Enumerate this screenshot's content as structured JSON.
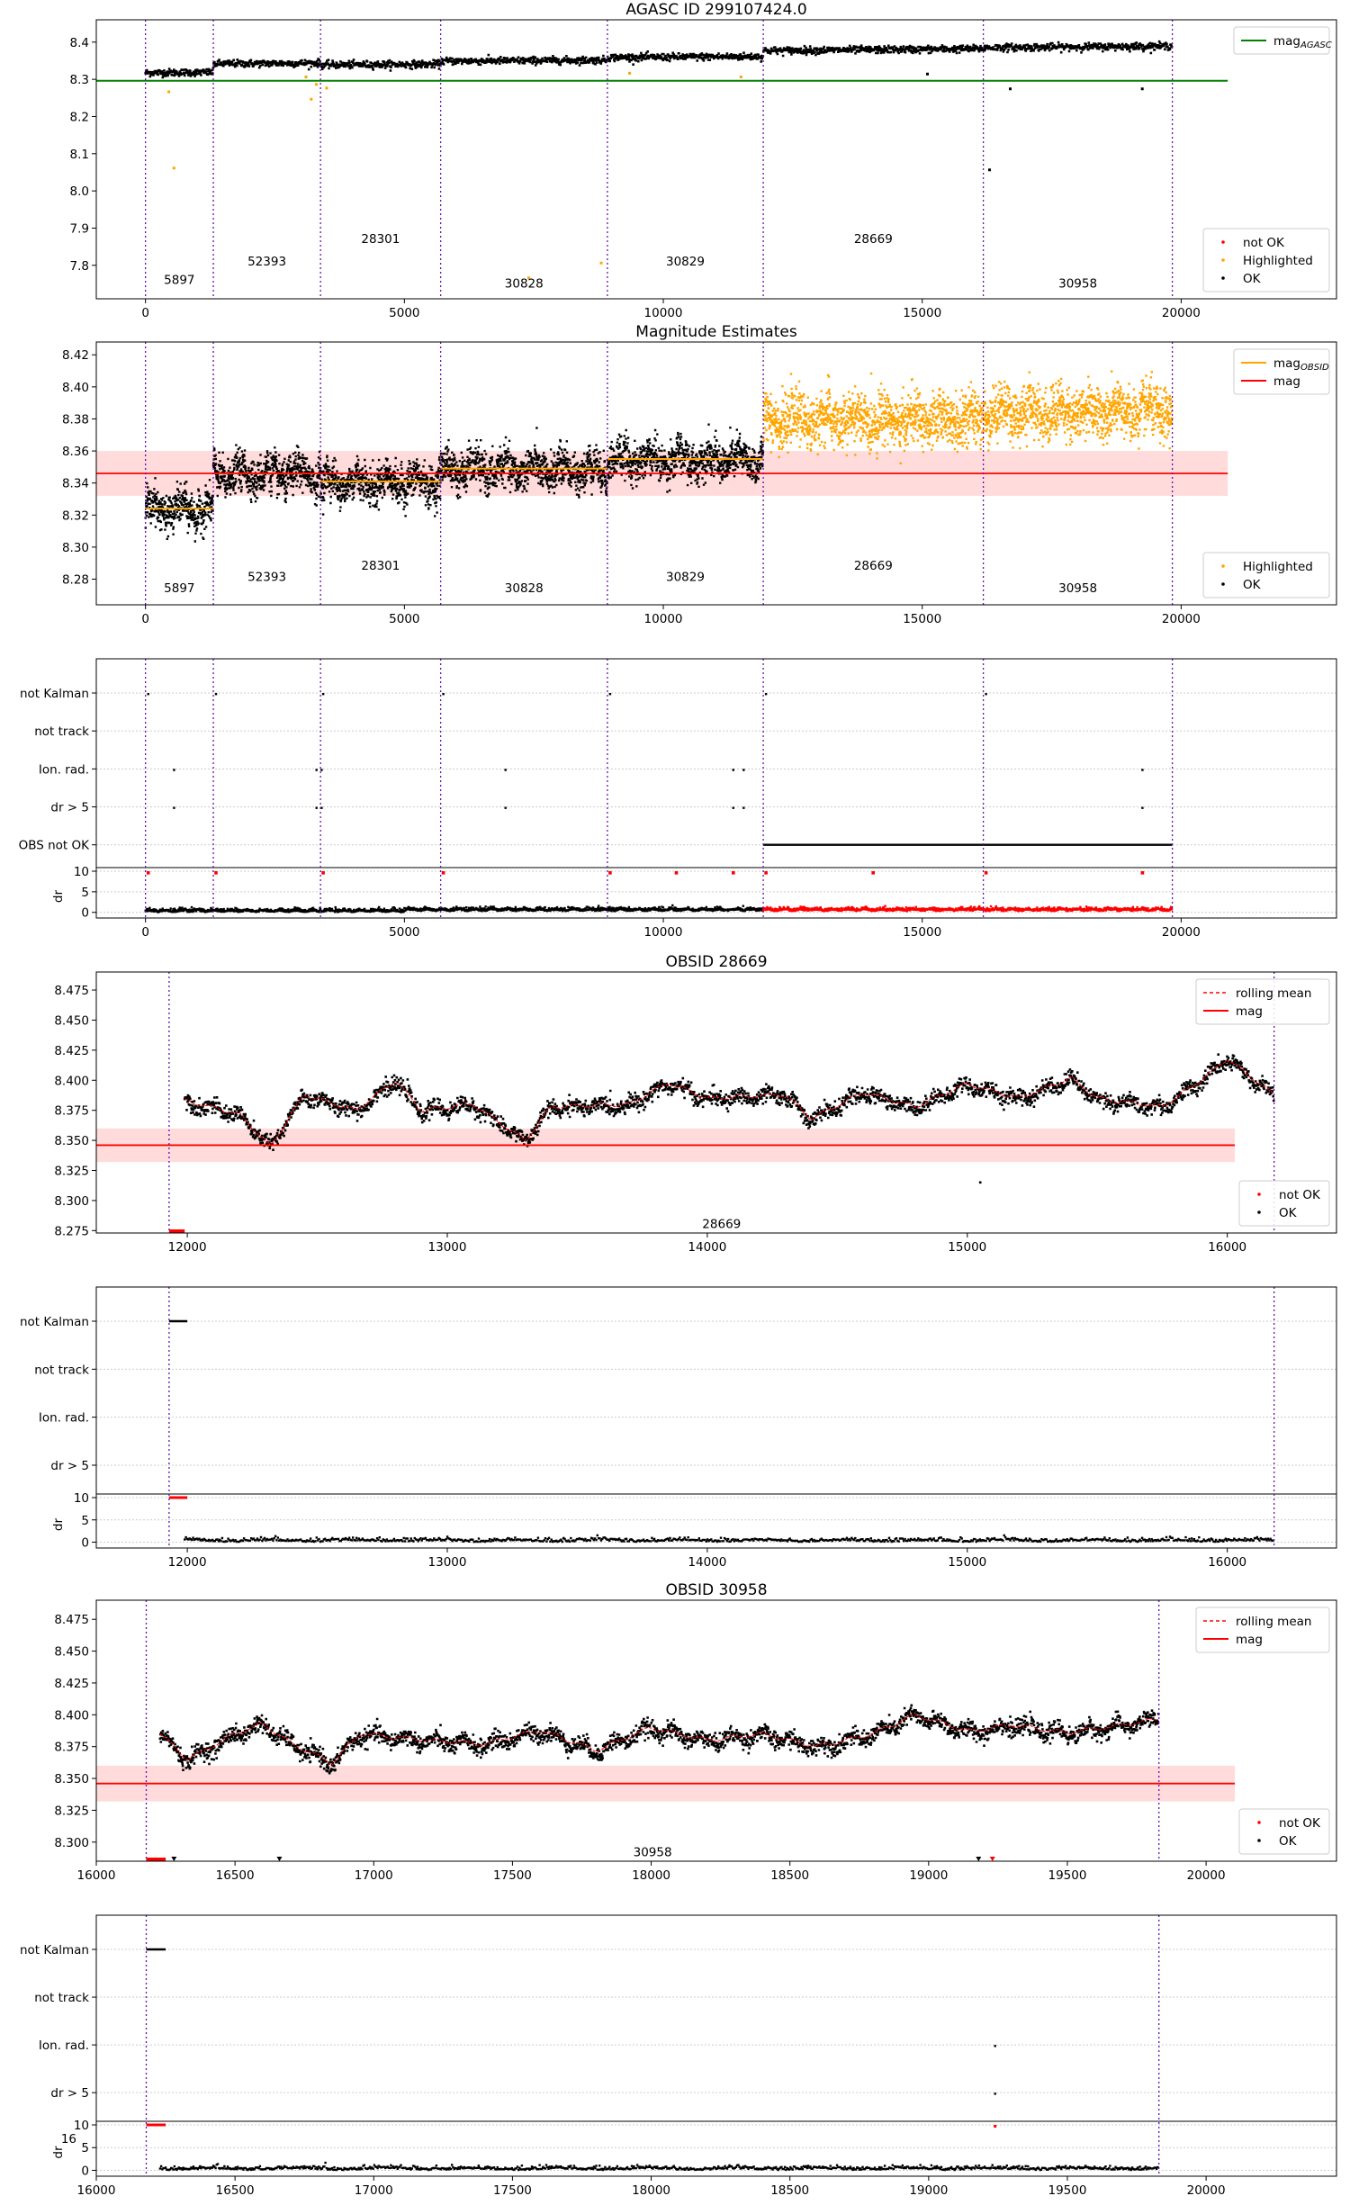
{
  "colors": {
    "ok": "#000000",
    "not_ok": "#ff0000",
    "highlighted": "#ffa500",
    "obs_line": "#6a0dad",
    "agasc_mag_line": "#008000",
    "mag_line": "#ff0000",
    "mag_band": "#ffcccc",
    "rolling_mean": "#ff0000",
    "grid": "#cccccc"
  },
  "observations": [
    {
      "obsid": "5897",
      "start": 0,
      "end": 1310,
      "mean": 8.324
    },
    {
      "obsid": "52393",
      "start": 1310,
      "end": 3380,
      "mean": 8.346
    },
    {
      "obsid": "28301",
      "start": 3380,
      "end": 5700,
      "mean": 8.341
    },
    {
      "obsid": "30828",
      "start": 5700,
      "end": 8920,
      "mean": 8.349
    },
    {
      "obsid": "30829",
      "start": 8920,
      "end": 11930,
      "mean": 8.355
    },
    {
      "obsid": "28669",
      "start": 11930,
      "end": 16180,
      "mean": 8.38
    },
    {
      "obsid": "30958",
      "start": 16180,
      "end": 19830,
      "mean": 8.385
    }
  ],
  "chart_data": [
    {
      "id": "agasc",
      "type": "scatter",
      "title": "AGASC ID 299107424.0",
      "xlim": [
        -950,
        23000
      ],
      "ylim": [
        7.71,
        8.46
      ],
      "xticks": [
        0,
        5000,
        10000,
        15000,
        20000
      ],
      "yticks": [
        7.8,
        7.9,
        8.0,
        8.1,
        8.2,
        8.3,
        8.4
      ],
      "ytick_labels": [
        "7.8",
        "7.9",
        "8.0",
        "8.1",
        "8.2",
        "8.3",
        "8.4"
      ],
      "hlines": [
        {
          "y": 8.296,
          "x0": -950,
          "x1": 20900,
          "color": "agasc_mag_line",
          "name": "mag_AGASC"
        }
      ],
      "legend_top": {
        "position": "top-right",
        "entries": [
          {
            "label": "mag",
            "sub": "AGASC",
            "color": "agasc_mag_line",
            "kind": "line"
          }
        ]
      },
      "legend_bottom": {
        "position": "bottom-right",
        "entries": [
          {
            "label": "not OK",
            "color": "not_ok",
            "kind": "dot"
          },
          {
            "label": "Highlighted",
            "color": "highlighted",
            "kind": "dot"
          },
          {
            "label": "OK",
            "color": "ok",
            "kind": "dot"
          }
        ]
      },
      "series": [
        {
          "name": "OK",
          "color": "ok",
          "x_start": 0,
          "x_end": 19830,
          "segments": [
            [
              0,
              8.322
            ],
            [
              1310,
              8.345
            ],
            [
              3380,
              8.34
            ],
            [
              5700,
              8.348
            ],
            [
              8920,
              8.355
            ],
            [
              11930,
              8.38
            ],
            [
              16180,
              8.383
            ],
            [
              19830,
              8.392
            ]
          ],
          "noise": 0.008,
          "count": 2200
        },
        {
          "name": "Highlighted",
          "color": "highlighted",
          "points": [
            [
              450,
              8.27
            ],
            [
              550,
              8.065
            ],
            [
              3100,
              8.31
            ],
            [
              3200,
              8.25
            ],
            [
              3300,
              8.29
            ],
            [
              3500,
              8.28
            ],
            [
              9350,
              8.32
            ],
            [
              11500,
              8.31
            ],
            [
              7400,
              7.77
            ],
            [
              8800,
              7.81
            ]
          ]
        },
        {
          "name": "OK outliers",
          "color": "ok",
          "points": [
            [
              15100,
              8.318
            ],
            [
              16300,
              8.06
            ],
            [
              16700,
              8.278
            ],
            [
              19250,
              8.278
            ]
          ]
        }
      ],
      "obs_label_rows": {
        "5897": 7.75,
        "52393": 7.8,
        "28301": 7.86,
        "30828": 7.74,
        "30829": 7.8,
        "28669": 7.86,
        "30958": 7.74
      }
    },
    {
      "id": "magest",
      "type": "scatter",
      "title": "Magnitude Estimates",
      "xlim": [
        -950,
        23000
      ],
      "ylim": [
        8.264,
        8.428
      ],
      "xticks": [
        0,
        5000,
        10000,
        15000,
        20000
      ],
      "yticks": [
        8.28,
        8.3,
        8.32,
        8.34,
        8.36,
        8.38,
        8.4,
        8.42
      ],
      "ytick_labels": [
        "8.28",
        "8.30",
        "8.32",
        "8.34",
        "8.36",
        "8.38",
        "8.40",
        "8.42"
      ],
      "mag": 8.346,
      "mag_band": [
        8.332,
        8.36
      ],
      "legend_top": {
        "position": "top-right",
        "entries": [
          {
            "label": "mag",
            "sub": "OBSID",
            "color": "highlighted",
            "kind": "line"
          },
          {
            "label": "mag",
            "color": "mag_line",
            "kind": "line"
          }
        ]
      },
      "legend_bottom": {
        "position": "bottom-right",
        "entries": [
          {
            "label": "Highlighted",
            "color": "highlighted",
            "kind": "dot"
          },
          {
            "label": "OK",
            "color": "ok",
            "kind": "dot"
          }
        ]
      },
      "obs_label_rows": {
        "5897": 8.272,
        "52393": 8.279,
        "28301": 8.286,
        "30828": 8.272,
        "30829": 8.279,
        "28669": 8.286,
        "30958": 8.272
      }
    },
    {
      "id": "flags_all",
      "type": "scatter",
      "xlim": [
        -950,
        23000
      ],
      "xticks": [
        0,
        5000,
        10000,
        15000,
        20000
      ],
      "flag_labels": [
        "not Kalman",
        "not track",
        "Ion. rad.",
        "dr > 5",
        "OBS not OK"
      ],
      "dr_ylim": [
        -0.5,
        10
      ],
      "dr_yticks": [
        0,
        5,
        10
      ],
      "dr_label": "dr",
      "flag_points": {
        "not Kalman": [
          0,
          1310,
          3380,
          5700,
          8920,
          11930,
          16180
        ],
        "Ion. rad.": [
          500,
          3250,
          3350,
          6900,
          11300,
          11500,
          19200
        ],
        "dr > 5": [
          500,
          3250,
          3350,
          6900,
          11300,
          11500,
          19200
        ]
      },
      "obs_not_ok_range": [
        11930,
        19830
      ],
      "dr_red_range": [
        11930,
        19830
      ]
    },
    {
      "id": "obs28669",
      "type": "scatter",
      "title": "OBSID 28669",
      "obsid": "28669",
      "xlim": [
        11650,
        16420
      ],
      "ylim": [
        8.273,
        8.49
      ],
      "xticks": [
        12000,
        13000,
        14000,
        15000,
        16000
      ],
      "yticks": [
        8.275,
        8.3,
        8.325,
        8.35,
        8.375,
        8.4,
        8.425,
        8.45,
        8.475
      ],
      "ytick_labels": [
        "8.275",
        "8.300",
        "8.325",
        "8.350",
        "8.375",
        "8.400",
        "8.425",
        "8.450",
        "8.475"
      ],
      "mag": 8.346,
      "mag_band": [
        8.332,
        8.36
      ],
      "range": [
        11930,
        16180
      ],
      "data_start": 11990,
      "base_curve": [
        [
          11990,
          8.383
        ],
        [
          12200,
          8.372
        ],
        [
          12320,
          8.345
        ],
        [
          12450,
          8.388
        ],
        [
          12650,
          8.375
        ],
        [
          12800,
          8.4
        ],
        [
          12900,
          8.375
        ],
        [
          13100,
          8.38
        ],
        [
          13300,
          8.35
        ],
        [
          13400,
          8.378
        ],
        [
          13700,
          8.38
        ],
        [
          13850,
          8.398
        ],
        [
          14000,
          8.385
        ],
        [
          14300,
          8.388
        ],
        [
          14400,
          8.368
        ],
        [
          14600,
          8.39
        ],
        [
          14800,
          8.378
        ],
        [
          15000,
          8.397
        ],
        [
          15200,
          8.385
        ],
        [
          15400,
          8.402
        ],
        [
          15500,
          8.385
        ],
        [
          15750,
          8.378
        ],
        [
          15900,
          8.4
        ],
        [
          16000,
          8.418
        ],
        [
          16180,
          8.388
        ]
      ],
      "noise": 0.006,
      "outliers": [
        [
          15050,
          8.316
        ]
      ],
      "not_ok_range": [
        11930,
        11990
      ],
      "legend_top": {
        "position": "top-right",
        "entries": [
          {
            "label": "rolling mean",
            "color": "rolling_mean",
            "kind": "dash"
          },
          {
            "label": "mag",
            "color": "mag_line",
            "kind": "line"
          }
        ]
      },
      "legend_bottom": {
        "position": "bottom-right",
        "entries": [
          {
            "label": "not OK",
            "color": "not_ok",
            "kind": "dot"
          },
          {
            "label": "OK",
            "color": "ok",
            "kind": "dot"
          }
        ]
      },
      "obs_label_y": 8.277
    },
    {
      "id": "flags_28669",
      "type": "scatter",
      "xlim": [
        11650,
        16420
      ],
      "xticks": [
        12000,
        13000,
        14000,
        15000,
        16000
      ],
      "flag_labels": [
        "not Kalman",
        "not track",
        "Ion. rad.",
        "dr > 5"
      ],
      "dr_ylim": [
        -0.5,
        10
      ],
      "dr_yticks": [
        0,
        5,
        10
      ],
      "dr_label": "dr",
      "range": [
        11930,
        16180
      ],
      "not_kalman_range": [
        11930,
        12000
      ],
      "dr_red_range": [
        11930,
        12000
      ],
      "data_start": 11990
    },
    {
      "id": "obs30958",
      "type": "scatter",
      "title": "OBSID 30958",
      "obsid": "30958",
      "xlim": [
        16000,
        20470
      ],
      "ylim": [
        8.285,
        8.49
      ],
      "xticks": [
        16000,
        16500,
        17000,
        17500,
        18000,
        18500,
        19000,
        19500,
        20000
      ],
      "yticks": [
        8.3,
        8.325,
        8.35,
        8.375,
        8.4,
        8.425,
        8.45,
        8.475
      ],
      "ytick_labels": [
        "8.300",
        "8.325",
        "8.350",
        "8.375",
        "8.400",
        "8.425",
        "8.450",
        "8.475"
      ],
      "mag": 8.346,
      "mag_band": [
        8.332,
        8.36
      ],
      "range": [
        16180,
        19830
      ],
      "data_start": 16230,
      "base_curve": [
        [
          16230,
          8.385
        ],
        [
          16330,
          8.365
        ],
        [
          16500,
          8.385
        ],
        [
          16600,
          8.393
        ],
        [
          16700,
          8.378
        ],
        [
          16850,
          8.362
        ],
        [
          16950,
          8.385
        ],
        [
          17200,
          8.38
        ],
        [
          17400,
          8.377
        ],
        [
          17600,
          8.388
        ],
        [
          17800,
          8.372
        ],
        [
          18000,
          8.39
        ],
        [
          18200,
          8.38
        ],
        [
          18400,
          8.385
        ],
        [
          18600,
          8.375
        ],
        [
          18800,
          8.385
        ],
        [
          18950,
          8.4
        ],
        [
          19150,
          8.387
        ],
        [
          19300,
          8.392
        ],
        [
          19500,
          8.386
        ],
        [
          19700,
          8.392
        ],
        [
          19830,
          8.397
        ]
      ],
      "noise": 0.006,
      "outliers": [],
      "not_ok_range": [
        16180,
        16250
      ],
      "not_ok_points": [
        16280,
        16660,
        19180,
        19230
      ],
      "legend_top": {
        "position": "top-right",
        "entries": [
          {
            "label": "rolling mean",
            "color": "rolling_mean",
            "kind": "dash"
          },
          {
            "label": "mag",
            "color": "mag_line",
            "kind": "line"
          }
        ]
      },
      "legend_bottom": {
        "position": "bottom-right",
        "entries": [
          {
            "label": "not OK",
            "color": "not_ok",
            "kind": "dot"
          },
          {
            "label": "OK",
            "color": "ok",
            "kind": "dot"
          }
        ]
      },
      "obs_label_y": 8.289
    },
    {
      "id": "flags_30958",
      "type": "scatter",
      "xlim": [
        16000,
        20470
      ],
      "xticks": [
        16000,
        16500,
        17000,
        17500,
        18000,
        18500,
        19000,
        19500,
        20000
      ],
      "flag_labels": [
        "not Kalman",
        "not track",
        "Ion. rad.",
        "dr > 5"
      ],
      "dr_ylim": [
        -0.5,
        10
      ],
      "dr_yticks": [
        0,
        5,
        10
      ],
      "dr_label": "dr",
      "range": [
        16180,
        19830
      ],
      "not_kalman_range": [
        16180,
        16250
      ],
      "dr_red_range": [
        16180,
        16250
      ],
      "flag_points": {
        "Ion. rad.": [
          19230
        ],
        "dr > 5": [
          19230
        ]
      },
      "data_start": 16230,
      "stray_label": "16"
    }
  ]
}
